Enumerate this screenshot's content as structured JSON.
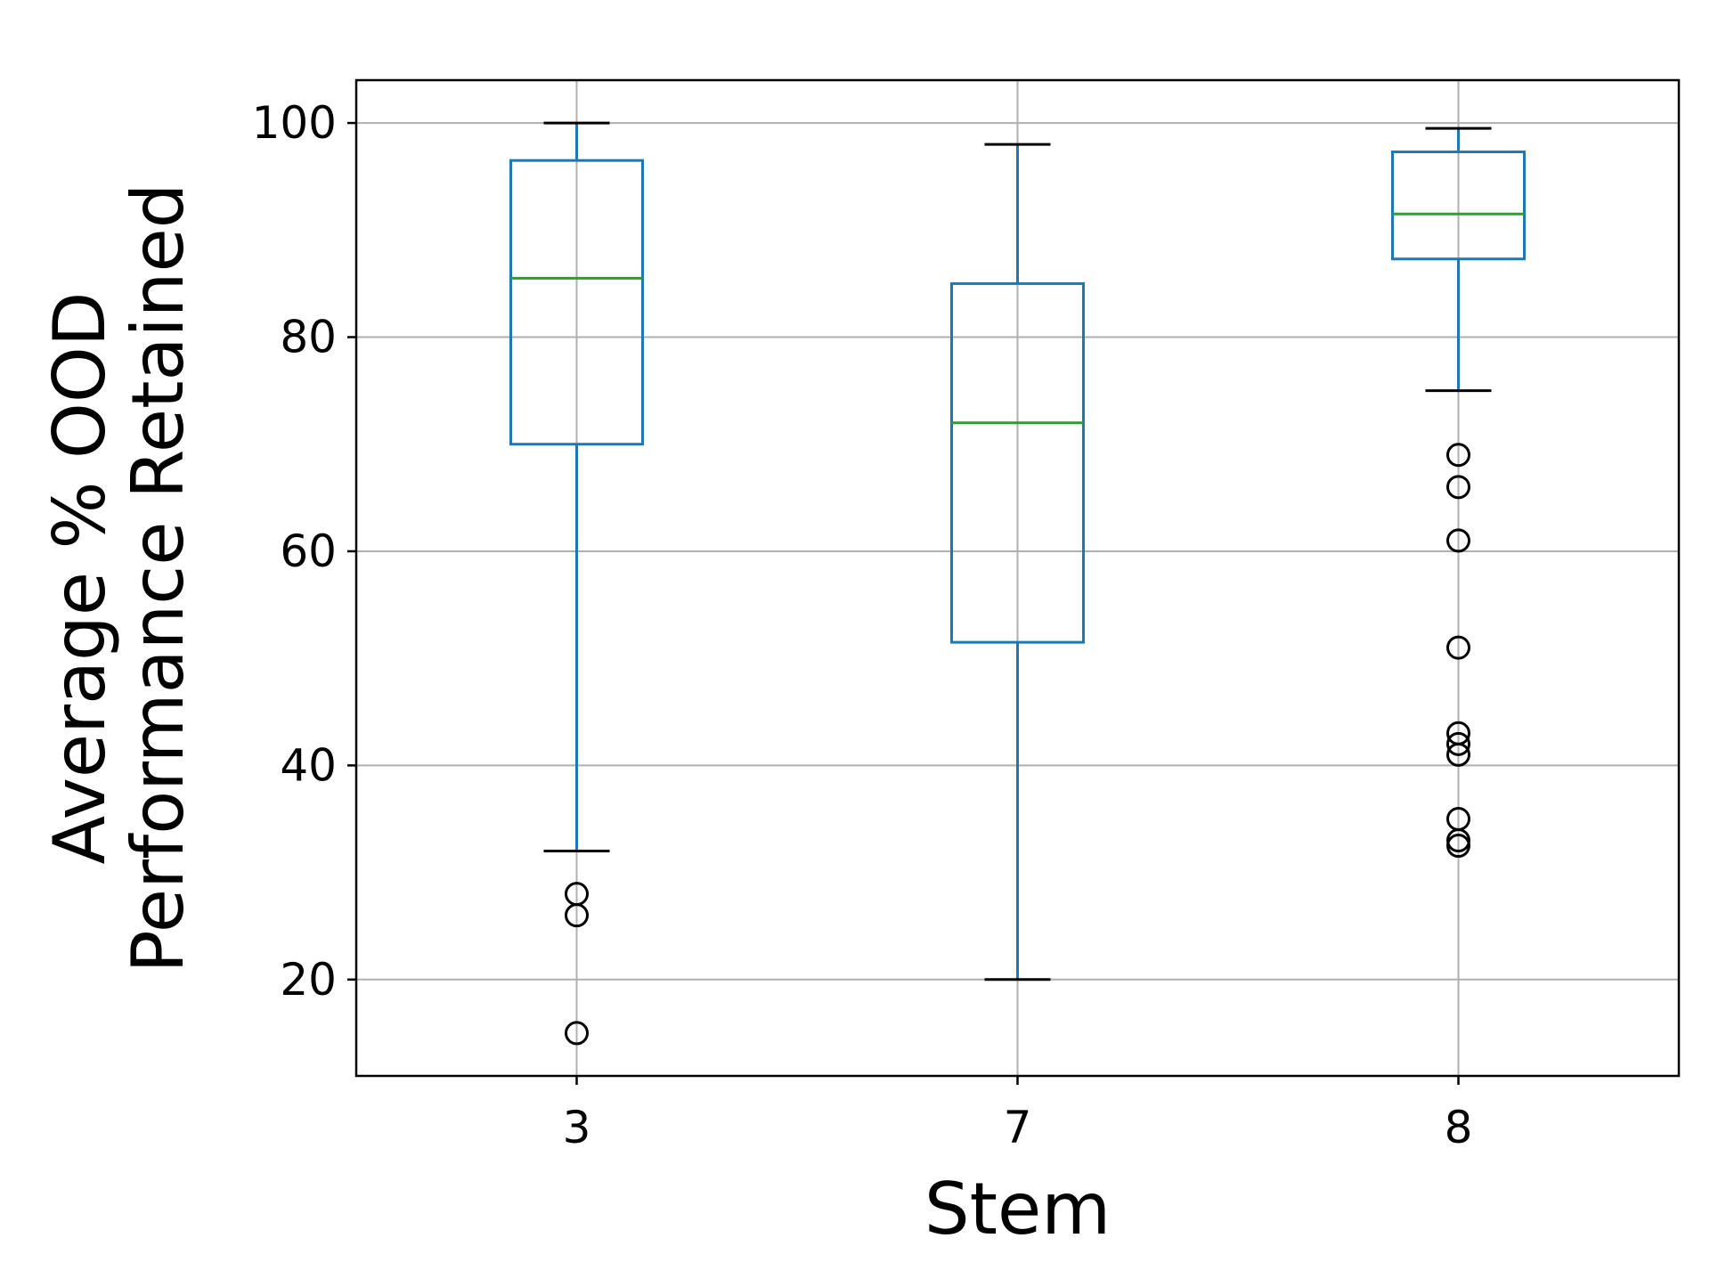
{
  "chart_data": {
    "type": "box",
    "xlabel": "Stem",
    "ylabel": [
      "Average % OOD",
      "Performance Retained"
    ],
    "ylim": [
      11,
      104
    ],
    "yticks": [
      20,
      40,
      60,
      80,
      100
    ],
    "grid": true,
    "categories": [
      "3",
      "7",
      "8"
    ],
    "boxes": [
      {
        "category": "3",
        "whisker_low": 32,
        "q1": 70,
        "median": 85.5,
        "q3": 96.5,
        "whisker_high": 100,
        "outliers": [
          28,
          26,
          15
        ]
      },
      {
        "category": "7",
        "whisker_low": 20,
        "q1": 51.5,
        "median": 72,
        "q3": 85,
        "whisker_high": 98,
        "outliers": []
      },
      {
        "category": "8",
        "whisker_low": 75,
        "q1": 87.3,
        "median": 91.5,
        "q3": 97.3,
        "whisker_high": 99.5,
        "outliers": [
          69,
          66,
          61,
          51,
          43,
          42,
          41,
          35,
          33,
          32.5
        ]
      }
    ],
    "colors": {
      "box": "#1f77b4",
      "median": "#2ca02c",
      "whisker_cap": "#000000",
      "grid": "#b0b0b0",
      "outlier": "#000000"
    }
  }
}
